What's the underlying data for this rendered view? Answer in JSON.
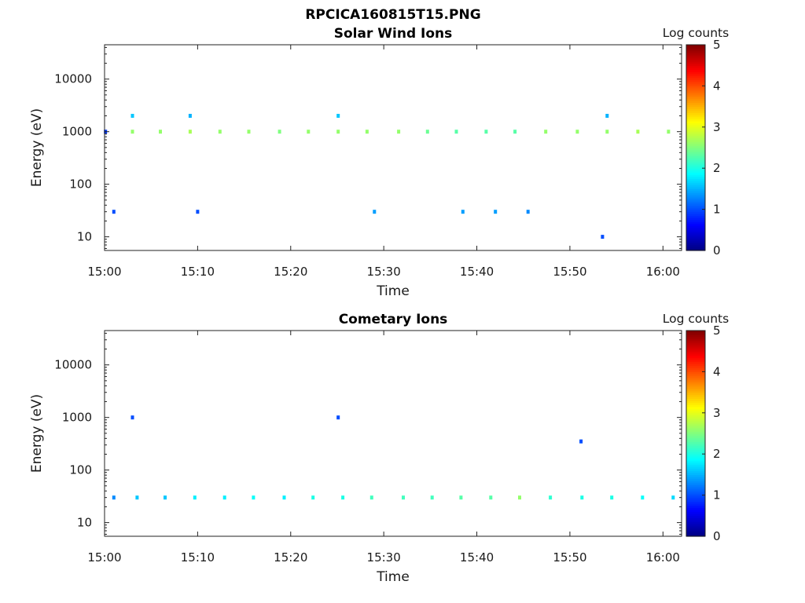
{
  "figure_title": "RPCICA160815T15.PNG",
  "chart_data": [
    {
      "type": "heatmap",
      "title": "Solar Wind Ions",
      "xlabel": "Time",
      "ylabel": "Energy (eV)",
      "x_range": [
        "15:00",
        "16:02"
      ],
      "y_range": [
        5.5,
        45000
      ],
      "y_scale": "log",
      "x_ticks": [
        "15:00",
        "15:10",
        "15:20",
        "15:30",
        "15:40",
        "15:50",
        "16:00"
      ],
      "y_ticks": [
        "10",
        "100",
        "1000",
        "10000"
      ],
      "colorbar": {
        "label": "Log counts",
        "min": 0,
        "max": 5,
        "ticks": [
          "0",
          "1",
          "2",
          "3",
          "4",
          "5"
        ],
        "colormap": "jet"
      },
      "sweeps_start_minutes": [
        0.1,
        3.0,
        6.0,
        9.2,
        12.4,
        15.5,
        18.8,
        21.9,
        25.1,
        28.2,
        31.6,
        34.7,
        37.8,
        41.0,
        44.1,
        47.4,
        50.8,
        54.0,
        57.3,
        60.6
      ],
      "cells": [
        {
          "t": 0.1,
          "e": 1000,
          "c": 0.9
        },
        {
          "t": 3.0,
          "e": 1000,
          "c": 2.6
        },
        {
          "t": 6.0,
          "e": 1000,
          "c": 2.6
        },
        {
          "t": 9.2,
          "e": 1000,
          "c": 2.7
        },
        {
          "t": 12.4,
          "e": 1000,
          "c": 2.6
        },
        {
          "t": 15.5,
          "e": 1000,
          "c": 2.6
        },
        {
          "t": 18.8,
          "e": 1000,
          "c": 2.5
        },
        {
          "t": 21.9,
          "e": 1000,
          "c": 2.6
        },
        {
          "t": 25.1,
          "e": 1000,
          "c": 2.6
        },
        {
          "t": 28.2,
          "e": 1000,
          "c": 2.6
        },
        {
          "t": 31.6,
          "e": 1000,
          "c": 2.6
        },
        {
          "t": 34.7,
          "e": 1000,
          "c": 2.4
        },
        {
          "t": 37.8,
          "e": 1000,
          "c": 2.3
        },
        {
          "t": 41.0,
          "e": 1000,
          "c": 2.3
        },
        {
          "t": 44.1,
          "e": 1000,
          "c": 2.3
        },
        {
          "t": 47.4,
          "e": 1000,
          "c": 2.6
        },
        {
          "t": 50.8,
          "e": 1000,
          "c": 2.6
        },
        {
          "t": 54.0,
          "e": 1000,
          "c": 2.6
        },
        {
          "t": 57.3,
          "e": 1000,
          "c": 2.7
        },
        {
          "t": 60.6,
          "e": 1000,
          "c": 2.6
        },
        {
          "t": 3.0,
          "e": 2000,
          "c": 1.6
        },
        {
          "t": 9.2,
          "e": 2000,
          "c": 1.5
        },
        {
          "t": 25.1,
          "e": 2000,
          "c": 1.6
        },
        {
          "t": 54.0,
          "e": 2000,
          "c": 1.5
        },
        {
          "t": 1.0,
          "e": 30,
          "c": 1.0
        },
        {
          "t": 10.0,
          "e": 30,
          "c": 1.0
        },
        {
          "t": 29.0,
          "e": 30,
          "c": 1.4
        },
        {
          "t": 38.5,
          "e": 30,
          "c": 1.4
        },
        {
          "t": 42.0,
          "e": 30,
          "c": 1.4
        },
        {
          "t": 45.5,
          "e": 30,
          "c": 1.3
        },
        {
          "t": 53.5,
          "e": 10,
          "c": 1.0
        }
      ]
    },
    {
      "type": "heatmap",
      "title": "Cometary Ions",
      "xlabel": "Time",
      "ylabel": "Energy (eV)",
      "x_range": [
        "15:00",
        "16:02"
      ],
      "y_range": [
        5.5,
        45000
      ],
      "y_scale": "log",
      "x_ticks": [
        "15:00",
        "15:10",
        "15:20",
        "15:30",
        "15:40",
        "15:50",
        "16:00"
      ],
      "y_ticks": [
        "10",
        "100",
        "1000",
        "10000"
      ],
      "colorbar": {
        "label": "Log counts",
        "min": 0,
        "max": 5,
        "ticks": [
          "0",
          "1",
          "2",
          "3",
          "4",
          "5"
        ],
        "colormap": "jet"
      },
      "sweeps_start_minutes": [
        0.1,
        3.0,
        6.0,
        9.2,
        12.4,
        15.5,
        18.8,
        21.9,
        25.1,
        28.2,
        31.6,
        34.7,
        37.8,
        41.0,
        44.1,
        47.4,
        50.8,
        54.0,
        57.3,
        60.6
      ],
      "cells": [
        {
          "t": 1.0,
          "e": 30,
          "c": 1.3
        },
        {
          "t": 3.5,
          "e": 30,
          "c": 1.6
        },
        {
          "t": 6.5,
          "e": 30,
          "c": 1.6
        },
        {
          "t": 9.7,
          "e": 30,
          "c": 1.8
        },
        {
          "t": 12.9,
          "e": 30,
          "c": 1.8
        },
        {
          "t": 16.0,
          "e": 30,
          "c": 1.9
        },
        {
          "t": 19.3,
          "e": 30,
          "c": 1.8
        },
        {
          "t": 22.4,
          "e": 30,
          "c": 2.0
        },
        {
          "t": 25.6,
          "e": 30,
          "c": 2.0
        },
        {
          "t": 28.7,
          "e": 30,
          "c": 2.2
        },
        {
          "t": 32.1,
          "e": 30,
          "c": 2.2
        },
        {
          "t": 35.2,
          "e": 30,
          "c": 2.2
        },
        {
          "t": 38.3,
          "e": 30,
          "c": 2.3
        },
        {
          "t": 41.5,
          "e": 30,
          "c": 2.3
        },
        {
          "t": 44.6,
          "e": 30,
          "c": 2.6
        },
        {
          "t": 47.9,
          "e": 30,
          "c": 2.1
        },
        {
          "t": 51.3,
          "e": 30,
          "c": 2.0
        },
        {
          "t": 54.5,
          "e": 30,
          "c": 2.0
        },
        {
          "t": 57.8,
          "e": 30,
          "c": 1.9
        },
        {
          "t": 61.1,
          "e": 30,
          "c": 1.7
        },
        {
          "t": 3.0,
          "e": 1000,
          "c": 1.0
        },
        {
          "t": 25.1,
          "e": 1000,
          "c": 1.0
        },
        {
          "t": 51.2,
          "e": 350,
          "c": 1.0
        }
      ]
    }
  ]
}
